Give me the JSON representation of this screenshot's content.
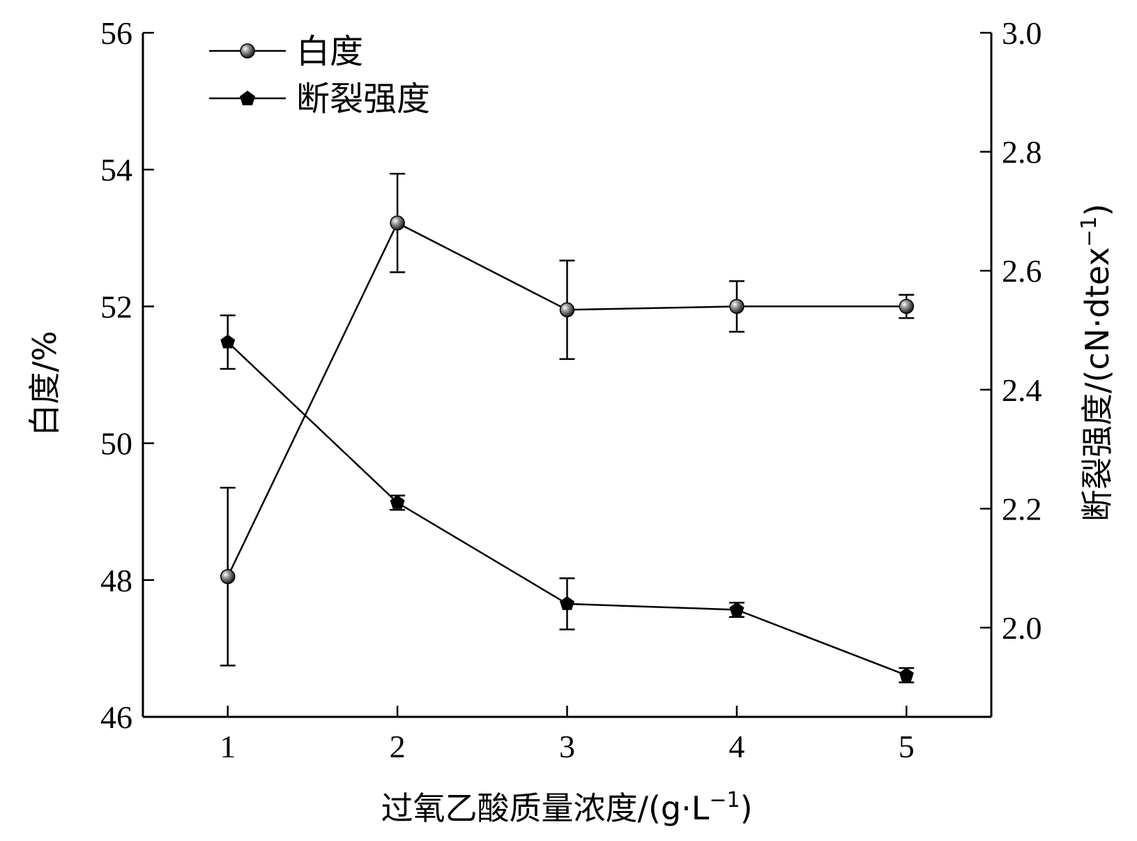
{
  "chart_data": {
    "type": "line",
    "x": [
      1,
      2,
      3,
      4,
      5
    ],
    "xlabel": "过氧乙酸质量浓度/(g·L",
    "xlabel_sup": "−1",
    "xlabel_end": ")",
    "ylabel_left": "白度/%",
    "ylabel_right": "断裂强度/(cN·dtex",
    "ylabel_right_sup": "−1",
    "ylabel_right_end": ")",
    "xlim": [
      0.5,
      5.5
    ],
    "ylim_left": [
      46,
      56
    ],
    "ylim_right": [
      1.85,
      3.0
    ],
    "x_ticks": [
      "1",
      "2",
      "3",
      "4",
      "5"
    ],
    "y_ticks_left": [
      "46",
      "48",
      "50",
      "52",
      "54",
      "56"
    ],
    "y_ticks_right": [
      "2.0",
      "2.2",
      "2.4",
      "2.6",
      "2.8",
      "3.0"
    ],
    "legend_position": "top-left",
    "series": [
      {
        "name": "白度",
        "axis": "left",
        "marker": "circle",
        "values": [
          48.05,
          53.22,
          51.95,
          52.0,
          52.0
        ],
        "errors": [
          1.3,
          0.72,
          0.72,
          0.37,
          0.17
        ]
      },
      {
        "name": "断裂强度",
        "axis": "right",
        "marker": "pentagon",
        "values": [
          2.48,
          2.21,
          2.04,
          2.03,
          1.92
        ],
        "errors": [
          0.045,
          0.012,
          0.043,
          0.012,
          0.012
        ]
      }
    ]
  }
}
